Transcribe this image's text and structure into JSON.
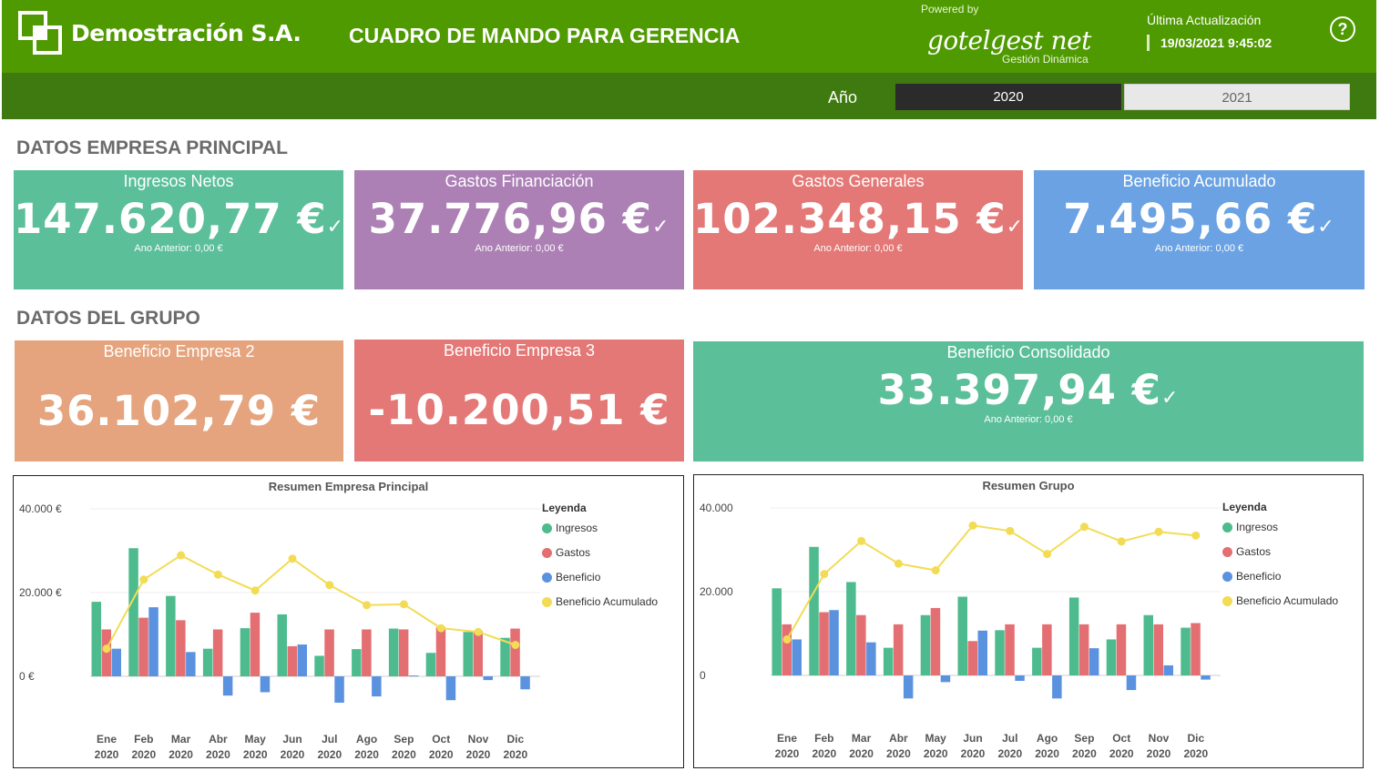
{
  "header": {
    "company": "Demostración S.A.",
    "title": "CUADRO DE MANDO PARA GERENCIA",
    "powered_by": "Powered by",
    "brand": "gotelgest net",
    "brand_sub": "Gestión Dinámica",
    "update_label": "Última Actualización",
    "update_value": "19/03/2021 9:45:02",
    "help_symbol": "?"
  },
  "filter": {
    "label": "Año",
    "years": [
      "2020",
      "2021"
    ],
    "selected": "2020"
  },
  "sections": {
    "principal": "DATOS EMPRESA PRINCIPAL",
    "grupo": "DATOS DEL GRUPO"
  },
  "kpis": [
    {
      "title": "Ingresos Netos",
      "value": "147.620,77 €",
      "check": "✓",
      "prev": "Ano Anterior: 0,00 €",
      "color": "#5bbf9a"
    },
    {
      "title": "Gastos Financiación",
      "value": "37.776,96 €",
      "check": "✓",
      "prev": "Ano Anterior: 0,00 €",
      "color": "#ac80b5"
    },
    {
      "title": "Gastos Generales",
      "value": "102.348,15 €",
      "check": "✓",
      "prev": "Ano Anterior: 0,00 €",
      "color": "#e37876"
    },
    {
      "title": "Beneficio Acumulado",
      "value": "7.495,66 €",
      "check": "✓",
      "prev": "Ano Anterior: 0,00 €",
      "color": "#6aa2e3"
    }
  ],
  "group_kpis": [
    {
      "title": "Beneficio Empresa 2",
      "value": "36.102,79 €",
      "color": "#e5a47e"
    },
    {
      "title": "Beneficio Empresa 3",
      "value": "-10.200,51 €",
      "color": "#e37876"
    },
    {
      "title": "Beneficio Consolidado",
      "value": "33.397,94 €",
      "check": "✓",
      "prev": "Ano Anterior: 0,00 €",
      "color": "#5bbf9a"
    }
  ],
  "colors": {
    "header": "#4f9a00",
    "filterbar": "#3f7a10",
    "ingresos": "#4dbb8d",
    "gastos": "#e36f72",
    "beneficio": "#5b92e0",
    "acumulado": "#f2dc55"
  },
  "chart_data": [
    {
      "type": "bar",
      "title": "Resumen Empresa Principal",
      "legend_title": "Leyenda",
      "legend_position": "right",
      "categories": [
        "Ene",
        "Feb",
        "Mar",
        "Abr",
        "May",
        "Jun",
        "Jul",
        "Ago",
        "Sep",
        "Oct",
        "Nov",
        "Dic"
      ],
      "category_year": "2020",
      "y_ticks": [
        "40.000 €",
        "20.000 €",
        "0 €"
      ],
      "y_tick_values": [
        40000,
        20000,
        0
      ],
      "ylim": [
        -7000,
        40000
      ],
      "series": [
        {
          "name": "Ingresos",
          "type": "bar",
          "values": [
            17800,
            30600,
            19200,
            6600,
            11500,
            14800,
            4900,
            6500,
            11400,
            5600,
            10600,
            9200
          ]
        },
        {
          "name": "Gastos",
          "type": "bar",
          "values": [
            11200,
            14000,
            13400,
            11200,
            15200,
            7200,
            11200,
            11200,
            11200,
            11700,
            10800,
            11400
          ]
        },
        {
          "name": "Beneficio",
          "type": "bar",
          "values": [
            6600,
            16500,
            5800,
            -4600,
            -3800,
            7600,
            -6300,
            -4800,
            200,
            -5700,
            -900,
            -3100
          ]
        },
        {
          "name": "Beneficio Acumulado",
          "type": "line",
          "values": [
            6600,
            23100,
            28900,
            24300,
            20500,
            28100,
            21800,
            17000,
            17200,
            11500,
            10600,
            7500
          ]
        }
      ]
    },
    {
      "type": "bar",
      "title": "Resumen Grupo",
      "legend_title": "Leyenda",
      "legend_position": "right",
      "categories": [
        "Ene",
        "Feb",
        "Mar",
        "Abr",
        "May",
        "Jun",
        "Jul",
        "Ago",
        "Sep",
        "Oct",
        "Nov",
        "Dic"
      ],
      "category_year": "2020",
      "y_ticks": [
        "40.000",
        "20.000",
        "0"
      ],
      "y_tick_values": [
        40000,
        20000,
        0
      ],
      "ylim": [
        -7000,
        40000
      ],
      "series": [
        {
          "name": "Ingresos",
          "type": "bar",
          "values": [
            20800,
            30700,
            22300,
            6600,
            14400,
            18800,
            10800,
            6600,
            18600,
            8600,
            14400,
            11400
          ]
        },
        {
          "name": "Gastos",
          "type": "bar",
          "values": [
            12200,
            15100,
            14400,
            12200,
            16100,
            8200,
            12200,
            12200,
            12200,
            12200,
            12200,
            12500
          ]
        },
        {
          "name": "Beneficio",
          "type": "bar",
          "values": [
            8600,
            15600,
            7900,
            -5500,
            -1600,
            10700,
            -1300,
            -5500,
            6500,
            -3500,
            2400,
            -1000
          ]
        },
        {
          "name": "Beneficio Acumulado",
          "type": "line",
          "values": [
            8600,
            24200,
            32100,
            26700,
            25100,
            35800,
            34500,
            29000,
            35500,
            32000,
            34300,
            33400
          ]
        }
      ]
    }
  ]
}
